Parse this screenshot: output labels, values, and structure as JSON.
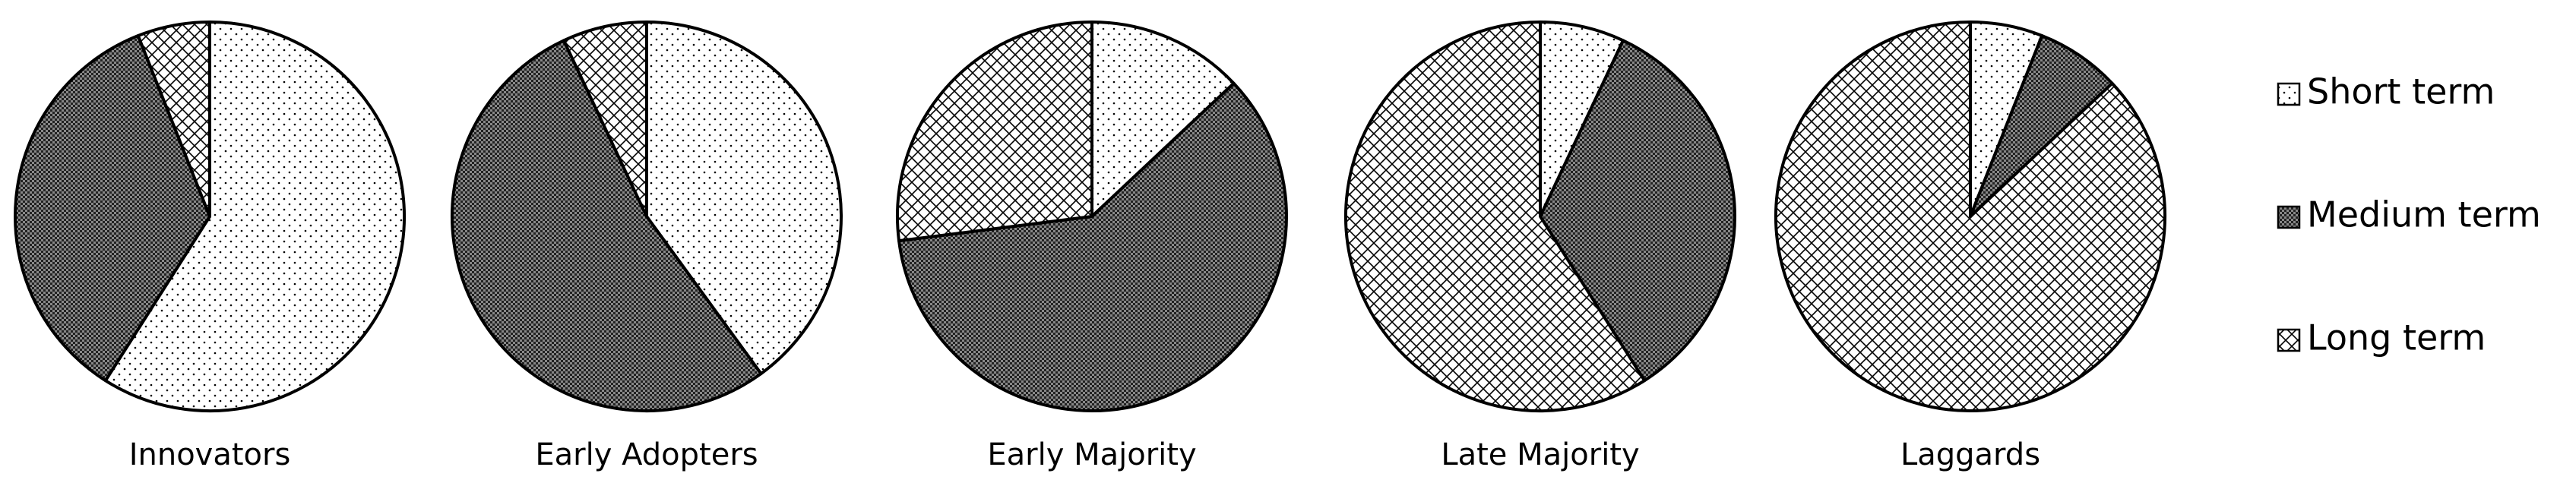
{
  "chart_data": {
    "type": "pie",
    "categories": [
      "Innovators",
      "Early Adopters",
      "Early Majority",
      "Late Majority",
      "Laggards"
    ],
    "series": [
      {
        "name": "Short term",
        "pattern": "dots",
        "values": [
          59,
          40,
          13,
          7,
          6
        ]
      },
      {
        "name": "Medium term",
        "pattern": "dense",
        "values": [
          35,
          53,
          60,
          34,
          7
        ]
      },
      {
        "name": "Long term",
        "pattern": "crosshatch",
        "values": [
          6,
          7,
          27,
          59,
          87
        ]
      }
    ]
  }
}
